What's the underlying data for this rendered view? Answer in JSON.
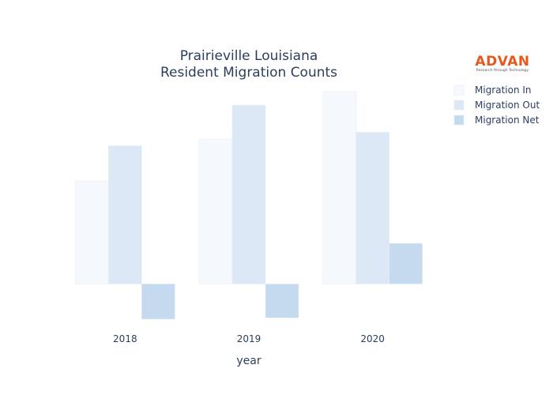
{
  "logo": {
    "name": "ADVAN",
    "tagline": "Research through Technology",
    "color": "#e8581c"
  },
  "chart_data": {
    "type": "bar",
    "title_lines": [
      "Prairieville Louisiana",
      "Resident Migration Counts"
    ],
    "xlabel": "year",
    "ylabel": "",
    "categories": [
      "2018",
      "2019",
      "2020"
    ],
    "ylim": [
      -2600,
      14200
    ],
    "grid": false,
    "legend_position": "top-right",
    "series": [
      {
        "name": "Migration In",
        "values": [
          7600,
          10700,
          14200
        ],
        "color": "#f5f9fd"
      },
      {
        "name": "Migration Out",
        "values": [
          10200,
          13200,
          11200
        ],
        "color": "#dce8f5"
      },
      {
        "name": "Migration Net",
        "values": [
          -2600,
          -2500,
          3000
        ],
        "color": "#c5daef"
      }
    ]
  }
}
